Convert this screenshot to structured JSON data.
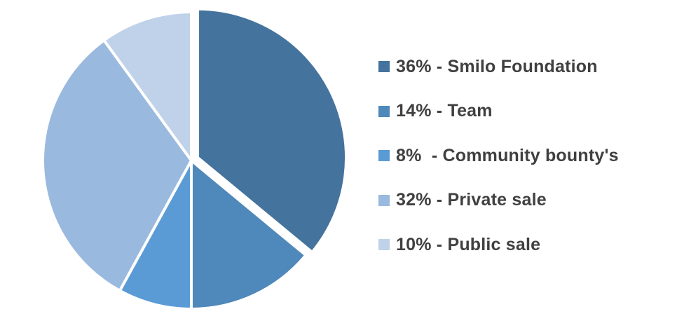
{
  "chart_data": {
    "type": "pie",
    "title": "",
    "start_angle_deg": 0,
    "direction": "clockwise",
    "legend_position": "right",
    "slices": [
      {
        "label": "36% - Smilo Foundation",
        "value": 36,
        "color": "#44739D",
        "exploded": true
      },
      {
        "label": "14% - Team",
        "value": 14,
        "color": "#4F88BA",
        "exploded": false
      },
      {
        "label": "8%  - Community bounty's",
        "value": 8,
        "color": "#5B9BD5",
        "exploded": false
      },
      {
        "label": "32% - Private sale",
        "value": 32,
        "color": "#9AB9DE",
        "exploded": false
      },
      {
        "label": "10% - Public sale",
        "value": 10,
        "color": "#C0D2EA",
        "exploded": false
      }
    ],
    "legend": [
      {
        "label": "36% - Smilo Foundation",
        "color": "#44739D"
      },
      {
        "label": "14% - Team",
        "color": "#4F88BA"
      },
      {
        "label": "8%  - Community bounty's",
        "color": "#5B9BD5"
      },
      {
        "label": "32% - Private sale",
        "color": "#9AB9DE"
      },
      {
        "label": "10% - Public sale",
        "color": "#C0D2EA"
      }
    ]
  }
}
